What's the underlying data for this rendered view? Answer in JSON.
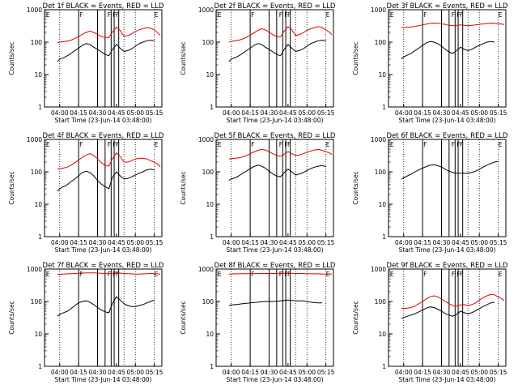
{
  "figure": {
    "x_tick_labels": [
      "04:00",
      "04:15",
      "04:30",
      "04:45",
      "05:00",
      "05:15"
    ],
    "y_tick_labels": [
      "1",
      "10",
      "100",
      "1000"
    ],
    "x_axis_label": "Start Time (23-Jun-14 03:48:00)",
    "y_axis_label": "Counts/sec",
    "colors": {
      "events": "#000000",
      "lld": "#e00000"
    }
  },
  "chart_data": [
    {
      "type": "line",
      "title": "Det 1f BLACK = Events, RED = LLD",
      "xlim": [
        3.8,
        5.35
      ],
      "ylim": [
        1,
        1000
      ],
      "yscale": "log",
      "x": [
        3.97,
        4.0,
        4.05,
        4.1,
        4.15,
        4.2,
        4.25,
        4.3,
        4.35,
        4.4,
        4.45,
        4.5,
        4.55,
        4.6,
        4.65,
        4.7,
        4.75,
        4.8,
        4.85,
        4.9,
        4.95,
        5.0,
        5.05,
        5.1,
        5.15,
        5.2,
        5.25,
        5.3,
        5.33
      ],
      "series": [
        {
          "name": "BLACK = Events",
          "values": [
            25,
            30,
            33,
            38,
            45,
            55,
            65,
            80,
            90,
            85,
            70,
            60,
            50,
            42,
            38,
            60,
            85,
            65,
            52,
            55,
            62,
            75,
            90,
            100,
            110,
            115,
            110,
            null,
            null
          ]
        },
        {
          "name": "RED = LLD",
          "values": [
            95,
            100,
            105,
            108,
            115,
            130,
            150,
            175,
            200,
            220,
            200,
            175,
            150,
            140,
            140,
            210,
            290,
            230,
            150,
            160,
            180,
            210,
            240,
            260,
            280,
            270,
            240,
            190,
            160
          ]
        }
      ],
      "annotations": [
        "E",
        "F",
        "F",
        "F",
        "F",
        "E"
      ]
    },
    {
      "type": "line",
      "title": "Det 2f BLACK = Events, RED = LLD",
      "xlim": [
        3.8,
        5.35
      ],
      "ylim": [
        1,
        1000
      ],
      "yscale": "log",
      "x": [
        3.97,
        4.0,
        4.05,
        4.1,
        4.15,
        4.2,
        4.25,
        4.3,
        4.35,
        4.4,
        4.45,
        4.5,
        4.55,
        4.6,
        4.65,
        4.7,
        4.75,
        4.8,
        4.85,
        4.9,
        4.95,
        5.0,
        5.05,
        5.1,
        5.15,
        5.2,
        5.25,
        5.3,
        5.33
      ],
      "series": [
        {
          "name": "BLACK = Events",
          "values": [
            25,
            30,
            33,
            38,
            45,
            55,
            65,
            80,
            90,
            85,
            70,
            60,
            50,
            42,
            38,
            60,
            85,
            65,
            52,
            55,
            62,
            75,
            90,
            100,
            110,
            115,
            110,
            null,
            null
          ]
        },
        {
          "name": "RED = LLD",
          "values": [
            100,
            105,
            110,
            115,
            125,
            140,
            165,
            195,
            230,
            260,
            240,
            205,
            170,
            150,
            145,
            220,
            300,
            240,
            160,
            170,
            195,
            230,
            260,
            280,
            300,
            280,
            240,
            200,
            170
          ]
        }
      ],
      "annotations": [
        "E",
        "F",
        "F",
        "F",
        "F",
        "E"
      ]
    },
    {
      "type": "line",
      "title": "Det 3f BLACK = Events, RED = LLD",
      "xlim": [
        3.8,
        5.35
      ],
      "ylim": [
        1,
        1000
      ],
      "yscale": "log",
      "x": [
        3.97,
        4.0,
        4.05,
        4.1,
        4.15,
        4.2,
        4.25,
        4.3,
        4.35,
        4.4,
        4.45,
        4.5,
        4.55,
        4.6,
        4.65,
        4.7,
        4.75,
        4.8,
        4.85,
        4.9,
        4.95,
        5.0,
        5.05,
        5.1,
        5.15,
        5.2,
        5.25,
        5.3,
        5.33
      ],
      "series": [
        {
          "name": "BLACK = Events",
          "values": [
            30,
            35,
            40,
            45,
            55,
            65,
            80,
            95,
            105,
            100,
            90,
            75,
            60,
            50,
            45,
            55,
            70,
            60,
            55,
            60,
            70,
            80,
            90,
            100,
            105,
            100,
            null,
            null,
            null
          ]
        },
        {
          "name": "RED = LLD",
          "values": [
            280,
            285,
            290,
            295,
            305,
            320,
            340,
            360,
            380,
            390,
            385,
            370,
            350,
            330,
            320,
            330,
            340,
            330,
            320,
            330,
            340,
            355,
            365,
            375,
            385,
            380,
            370,
            360,
            350
          ]
        }
      ],
      "annotations": [
        "E",
        "F",
        "F",
        "F",
        "F",
        "E"
      ]
    },
    {
      "type": "line",
      "title": "Det 4f BLACK = Events, RED = LLD",
      "xlim": [
        3.8,
        5.35
      ],
      "ylim": [
        1,
        1000
      ],
      "yscale": "log",
      "x": [
        3.97,
        4.0,
        4.05,
        4.1,
        4.15,
        4.2,
        4.25,
        4.3,
        4.35,
        4.4,
        4.45,
        4.5,
        4.55,
        4.6,
        4.65,
        4.7,
        4.75,
        4.8,
        4.85,
        4.9,
        4.95,
        5.0,
        5.05,
        5.1,
        5.15,
        5.2,
        5.25,
        5.3,
        5.33
      ],
      "series": [
        {
          "name": "BLACK = Events",
          "values": [
            25,
            30,
            35,
            40,
            50,
            60,
            75,
            95,
            105,
            95,
            75,
            55,
            42,
            35,
            30,
            70,
            100,
            75,
            60,
            62,
            70,
            80,
            90,
            100,
            115,
            120,
            115,
            null,
            null
          ]
        },
        {
          "name": "RED = LLD",
          "values": [
            120,
            125,
            130,
            140,
            160,
            190,
            230,
            280,
            330,
            360,
            320,
            250,
            190,
            160,
            150,
            260,
            380,
            300,
            200,
            200,
            220,
            250,
            260,
            260,
            250,
            220,
            200,
            170,
            140
          ]
        }
      ],
      "annotations": [
        "E",
        "F",
        "F",
        "F",
        "F",
        "E"
      ]
    },
    {
      "type": "line",
      "title": "Det 5f BLACK = Events, RED = LLD",
      "xlim": [
        3.8,
        5.35
      ],
      "ylim": [
        1,
        1000
      ],
      "yscale": "log",
      "x": [
        3.97,
        4.0,
        4.05,
        4.1,
        4.15,
        4.2,
        4.25,
        4.3,
        4.35,
        4.4,
        4.45,
        4.5,
        4.55,
        4.6,
        4.65,
        4.7,
        4.75,
        4.8,
        4.85,
        4.9,
        4.95,
        5.0,
        5.05,
        5.1,
        5.15,
        5.2,
        5.25,
        5.3,
        5.33
      ],
      "series": [
        {
          "name": "BLACK = Events",
          "values": [
            55,
            60,
            65,
            75,
            90,
            105,
            125,
            145,
            160,
            150,
            130,
            105,
            85,
            75,
            70,
            95,
            120,
            100,
            80,
            85,
            95,
            110,
            125,
            140,
            150,
            155,
            145,
            null,
            null
          ]
        },
        {
          "name": "RED = LLD",
          "values": [
            250,
            255,
            260,
            270,
            290,
            320,
            360,
            410,
            460,
            490,
            470,
            420,
            360,
            320,
            300,
            350,
            420,
            360,
            320,
            330,
            360,
            400,
            440,
            470,
            490,
            460,
            420,
            380,
            340
          ]
        }
      ],
      "annotations": [
        "E",
        "F",
        "F",
        "F",
        "F",
        "E"
      ]
    },
    {
      "type": "line",
      "title": "Det 6f BLACK = Events, RED = LLD",
      "xlim": [
        3.8,
        5.35
      ],
      "ylim": [
        1,
        1000
      ],
      "yscale": "log",
      "x": [
        3.97,
        4.0,
        4.05,
        4.1,
        4.15,
        4.2,
        4.25,
        4.3,
        4.35,
        4.4,
        4.45,
        4.5,
        4.55,
        4.6,
        4.65,
        4.7,
        4.75,
        4.8,
        4.85,
        4.9,
        4.95,
        5.0,
        5.05,
        5.1,
        5.15,
        5.2,
        5.25,
        5.3,
        5.33
      ],
      "series": [
        {
          "name": "BLACK = Events",
          "values": [
            60,
            65,
            75,
            85,
            100,
            115,
            130,
            145,
            160,
            165,
            155,
            140,
            120,
            105,
            95,
            90,
            90,
            90,
            90,
            95,
            105,
            120,
            140,
            160,
            180,
            200,
            210,
            null,
            null
          ]
        }
      ],
      "annotations": [
        "E",
        "F",
        "F",
        "F",
        "F",
        "E"
      ]
    },
    {
      "type": "line",
      "title": "Det 7f BLACK = Events, RED = LLD",
      "xlim": [
        3.8,
        5.35
      ],
      "ylim": [
        1,
        1000
      ],
      "yscale": "log",
      "x": [
        3.97,
        4.0,
        4.05,
        4.1,
        4.15,
        4.2,
        4.25,
        4.3,
        4.35,
        4.4,
        4.45,
        4.5,
        4.55,
        4.6,
        4.65,
        4.7,
        4.75,
        4.8,
        4.85,
        4.9,
        4.95,
        5.0,
        5.05,
        5.1,
        5.15,
        5.2,
        5.25,
        5.3,
        5.33
      ],
      "series": [
        {
          "name": "BLACK = Events",
          "values": [
            35,
            40,
            45,
            50,
            60,
            75,
            90,
            100,
            105,
            95,
            80,
            65,
            55,
            48,
            45,
            90,
            140,
            110,
            85,
            75,
            70,
            70,
            75,
            80,
            90,
            100,
            110,
            null,
            null
          ]
        },
        {
          "name": "RED = LLD",
          "values": [
            680,
            690,
            700,
            710,
            720,
            730,
            740,
            750,
            760,
            765,
            760,
            750,
            740,
            730,
            720,
            740,
            760,
            750,
            730,
            720,
            710,
            700,
            700,
            710,
            720,
            730,
            720,
            710,
            700
          ]
        }
      ],
      "annotations": [
        "E",
        "F",
        "F",
        "F",
        "F",
        "E"
      ]
    },
    {
      "type": "line",
      "title": "Det 8f BLACK = Events, RED = LLD",
      "xlim": [
        3.8,
        5.35
      ],
      "ylim": [
        1,
        1000
      ],
      "yscale": "log",
      "x": [
        3.97,
        4.0,
        4.05,
        4.1,
        4.15,
        4.2,
        4.25,
        4.3,
        4.35,
        4.4,
        4.45,
        4.5,
        4.55,
        4.6,
        4.65,
        4.7,
        4.75,
        4.8,
        4.85,
        4.9,
        4.95,
        5.0,
        5.05,
        5.1,
        5.15,
        5.2,
        5.25,
        5.3,
        5.33
      ],
      "series": [
        {
          "name": "BLACK = Events",
          "values": [
            75,
            78,
            80,
            82,
            85,
            88,
            90,
            92,
            95,
            98,
            100,
            100,
            100,
            102,
            105,
            108,
            110,
            108,
            105,
            105,
            105,
            100,
            95,
            92,
            90,
            90,
            null,
            null,
            null
          ]
        },
        {
          "name": "RED = LLD",
          "values": [
            700,
            705,
            710,
            710,
            715,
            720,
            720,
            725,
            725,
            730,
            730,
            730,
            730,
            730,
            735,
            740,
            740,
            735,
            730,
            730,
            725,
            720,
            715,
            710,
            710,
            705,
            700,
            700,
            695
          ]
        }
      ],
      "annotations": [
        "E",
        "F",
        "F",
        "F",
        "F",
        "E"
      ]
    },
    {
      "type": "line",
      "title": "Det 9f BLACK = Events, RED = LLD",
      "xlim": [
        3.8,
        5.35
      ],
      "ylim": [
        1,
        1000
      ],
      "yscale": "log",
      "x": [
        3.97,
        4.0,
        4.05,
        4.1,
        4.15,
        4.2,
        4.25,
        4.3,
        4.35,
        4.4,
        4.45,
        4.5,
        4.55,
        4.6,
        4.65,
        4.7,
        4.75,
        4.8,
        4.85,
        4.9,
        4.95,
        5.0,
        5.05,
        5.1,
        5.15,
        5.2,
        5.25,
        5.3,
        5.33
      ],
      "series": [
        {
          "name": "BLACK = Events",
          "values": [
            30,
            32,
            35,
            38,
            42,
            48,
            55,
            62,
            68,
            65,
            58,
            50,
            42,
            38,
            35,
            40,
            50,
            45,
            42,
            45,
            52,
            60,
            70,
            80,
            90,
            95,
            null,
            null,
            null
          ]
        },
        {
          "name": "RED = LLD",
          "values": [
            62,
            60,
            62,
            65,
            72,
            85,
            100,
            120,
            140,
            150,
            140,
            120,
            100,
            85,
            75,
            72,
            78,
            80,
            75,
            80,
            90,
            110,
            130,
            150,
            165,
            160,
            140,
            120,
            105
          ]
        }
      ],
      "annotations": [
        "E",
        "F",
        "F",
        "F",
        "F",
        "E"
      ]
    }
  ]
}
